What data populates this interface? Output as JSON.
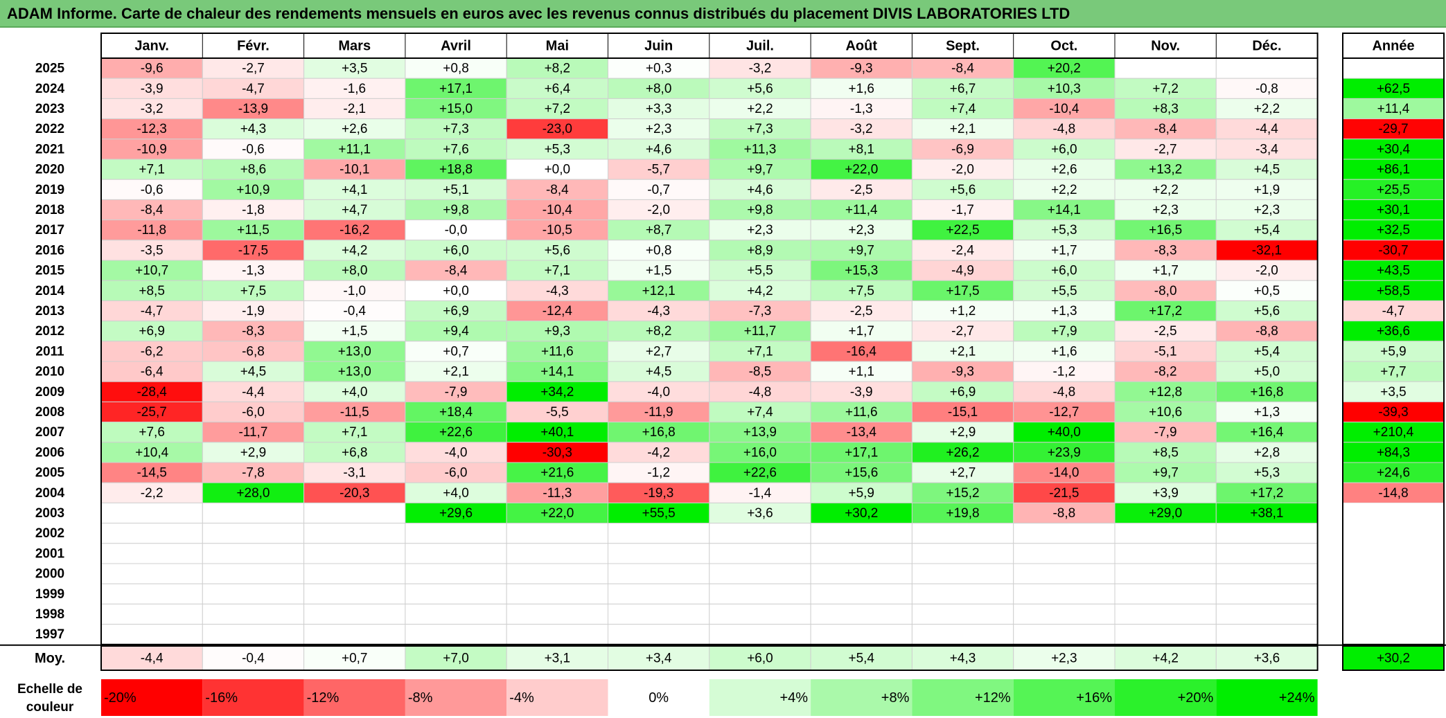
{
  "title": "ADAM Informe. Carte de chaleur des rendements mensuels en euros avec les revenus connus distribués du placement DIVIS LABORATORIES LTD",
  "chart_data": {
    "type": "heatmap",
    "title": "ADAM Informe. Carte de chaleur des rendements mensuels en euros avec les revenus connus distribués du placement DIVIS LABORATORIES LTD",
    "months": [
      "Janv.",
      "Févr.",
      "Mars",
      "Avril",
      "Mai",
      "Juin",
      "Juil.",
      "Août",
      "Sept.",
      "Oct.",
      "Nov.",
      "Déc."
    ],
    "year_header": "Année",
    "rows": [
      {
        "year": "2025",
        "values": [
          "-9,6",
          "-2,7",
          "+3,5",
          "+0,8",
          "+8,2",
          "+0,3",
          "-3,2",
          "-9,3",
          "-8,4",
          "+20,2",
          "",
          ""
        ],
        "annual": ""
      },
      {
        "year": "2024",
        "values": [
          "-3,9",
          "-4,7",
          "-1,6",
          "+17,1",
          "+6,4",
          "+8,0",
          "+5,6",
          "+1,6",
          "+6,7",
          "+10,3",
          "+7,2",
          "-0,8"
        ],
        "annual": "+62,5"
      },
      {
        "year": "2023",
        "values": [
          "-3,2",
          "-13,9",
          "-2,1",
          "+15,0",
          "+7,2",
          "+3,3",
          "+2,2",
          "-1,3",
          "+7,4",
          "-10,4",
          "+8,3",
          "+2,2"
        ],
        "annual": "+11,4"
      },
      {
        "year": "2022",
        "values": [
          "-12,3",
          "+4,3",
          "+2,6",
          "+7,3",
          "-23,0",
          "+2,3",
          "+7,3",
          "-3,2",
          "+2,1",
          "-4,8",
          "-8,4",
          "-4,4"
        ],
        "annual": "-29,7"
      },
      {
        "year": "2021",
        "values": [
          "-10,9",
          "-0,6",
          "+11,1",
          "+7,6",
          "+5,3",
          "+4,6",
          "+11,3",
          "+8,1",
          "-6,9",
          "+6,0",
          "-2,7",
          "-3,4"
        ],
        "annual": "+30,4"
      },
      {
        "year": "2020",
        "values": [
          "+7,1",
          "+8,6",
          "-10,1",
          "+18,8",
          "+0,0",
          "-5,7",
          "+9,7",
          "+22,0",
          "-2,0",
          "+2,6",
          "+13,2",
          "+4,5"
        ],
        "annual": "+86,1"
      },
      {
        "year": "2019",
        "values": [
          "-0,6",
          "+10,9",
          "+4,1",
          "+5,1",
          "-8,4",
          "-0,7",
          "+4,6",
          "-2,5",
          "+5,6",
          "+2,2",
          "+2,2",
          "+1,9"
        ],
        "annual": "+25,5"
      },
      {
        "year": "2018",
        "values": [
          "-8,4",
          "-1,8",
          "+4,7",
          "+9,8",
          "-10,4",
          "-2,0",
          "+9,8",
          "+11,4",
          "-1,7",
          "+14,1",
          "+2,3",
          "+2,3"
        ],
        "annual": "+30,1"
      },
      {
        "year": "2017",
        "values": [
          "-11,8",
          "+11,5",
          "-16,2",
          "-0,0",
          "-10,5",
          "+8,7",
          "+2,3",
          "+2,3",
          "+22,5",
          "+5,3",
          "+16,5",
          "+5,4"
        ],
        "annual": "+32,5"
      },
      {
        "year": "2016",
        "values": [
          "-3,5",
          "-17,5",
          "+4,2",
          "+6,0",
          "+5,6",
          "+0,8",
          "+8,9",
          "+9,7",
          "-2,4",
          "+1,7",
          "-8,3",
          "-32,1"
        ],
        "annual": "-30,7"
      },
      {
        "year": "2015",
        "values": [
          "+10,7",
          "-1,3",
          "+8,0",
          "-8,4",
          "+7,1",
          "+1,5",
          "+5,5",
          "+15,3",
          "-4,9",
          "+6,0",
          "+1,7",
          "-2,0"
        ],
        "annual": "+43,5"
      },
      {
        "year": "2014",
        "values": [
          "+8,5",
          "+7,5",
          "-1,0",
          "+0,0",
          "-4,3",
          "+12,1",
          "+4,2",
          "+7,5",
          "+17,5",
          "+5,5",
          "-8,0",
          "+0,5"
        ],
        "annual": "+58,5"
      },
      {
        "year": "2013",
        "values": [
          "-4,7",
          "-1,9",
          "-0,4",
          "+6,9",
          "-12,4",
          "-4,3",
          "-7,3",
          "-2,5",
          "+1,2",
          "+1,3",
          "+17,2",
          "+5,6"
        ],
        "annual": "-4,7"
      },
      {
        "year": "2012",
        "values": [
          "+6,9",
          "-8,3",
          "+1,5",
          "+9,4",
          "+9,3",
          "+8,2",
          "+11,7",
          "+1,7",
          "-2,7",
          "+7,9",
          "-2,5",
          "-8,8"
        ],
        "annual": "+36,6"
      },
      {
        "year": "2011",
        "values": [
          "-6,2",
          "-6,8",
          "+13,0",
          "+0,7",
          "+11,6",
          "+2,7",
          "+7,1",
          "-16,4",
          "+2,1",
          "+1,6",
          "-5,1",
          "+5,4"
        ],
        "annual": "+5,9"
      },
      {
        "year": "2010",
        "values": [
          "-6,4",
          "+4,5",
          "+13,0",
          "+2,1",
          "+14,1",
          "+4,5",
          "-8,5",
          "+1,1",
          "-9,3",
          "-1,2",
          "-8,2",
          "+5,0"
        ],
        "annual": "+7,7"
      },
      {
        "year": "2009",
        "values": [
          "-28,4",
          "-4,4",
          "+4,0",
          "-7,9",
          "+34,2",
          "-4,0",
          "-4,8",
          "-3,9",
          "+6,9",
          "-4,8",
          "+12,8",
          "+16,8"
        ],
        "annual": "+3,5"
      },
      {
        "year": "2008",
        "values": [
          "-25,7",
          "-6,0",
          "-11,5",
          "+18,4",
          "-5,5",
          "-11,9",
          "+7,4",
          "+11,6",
          "-15,1",
          "-12,7",
          "+10,6",
          "+1,3"
        ],
        "annual": "-39,3"
      },
      {
        "year": "2007",
        "values": [
          "+7,6",
          "-11,7",
          "+7,1",
          "+22,6",
          "+40,1",
          "+16,8",
          "+13,9",
          "-13,4",
          "+2,9",
          "+40,0",
          "-7,9",
          "+16,4"
        ],
        "annual": "+210,4"
      },
      {
        "year": "2006",
        "values": [
          "+10,4",
          "+2,9",
          "+6,8",
          "-4,0",
          "-30,3",
          "-4,2",
          "+16,0",
          "+17,1",
          "+26,2",
          "+23,9",
          "+8,5",
          "+2,8"
        ],
        "annual": "+84,3"
      },
      {
        "year": "2005",
        "values": [
          "-14,5",
          "-7,8",
          "-3,1",
          "-6,0",
          "+21,6",
          "-1,2",
          "+22,6",
          "+15,6",
          "+2,7",
          "-14,0",
          "+9,7",
          "+5,3"
        ],
        "annual": "+24,6"
      },
      {
        "year": "2004",
        "values": [
          "-2,2",
          "+28,0",
          "-20,3",
          "+4,0",
          "-11,3",
          "-19,3",
          "-1,4",
          "+5,9",
          "+15,2",
          "-21,5",
          "+3,9",
          "+17,2"
        ],
        "annual": "-14,8"
      },
      {
        "year": "2003",
        "values": [
          "",
          "",
          "",
          "+29,6",
          "+22,0",
          "+55,5",
          "+3,6",
          "+30,2",
          "+19,8",
          "-8,8",
          "+29,0",
          "+38,1"
        ],
        "annual": ""
      },
      {
        "year": "2002",
        "values": [
          "",
          "",
          "",
          "",
          "",
          "",
          "",
          "",
          "",
          "",
          "",
          ""
        ],
        "annual": ""
      },
      {
        "year": "2001",
        "values": [
          "",
          "",
          "",
          "",
          "",
          "",
          "",
          "",
          "",
          "",
          "",
          ""
        ],
        "annual": ""
      },
      {
        "year": "2000",
        "values": [
          "",
          "",
          "",
          "",
          "",
          "",
          "",
          "",
          "",
          "",
          "",
          ""
        ],
        "annual": ""
      },
      {
        "year": "1999",
        "values": [
          "",
          "",
          "",
          "",
          "",
          "",
          "",
          "",
          "",
          "",
          "",
          ""
        ],
        "annual": ""
      },
      {
        "year": "1998",
        "values": [
          "",
          "",
          "",
          "",
          "",
          "",
          "",
          "",
          "",
          "",
          "",
          ""
        ],
        "annual": ""
      },
      {
        "year": "1997",
        "values": [
          "",
          "",
          "",
          "",
          "",
          "",
          "",
          "",
          "",
          "",
          "",
          ""
        ],
        "annual": ""
      }
    ],
    "average": {
      "label": "Moy.",
      "values": [
        "-4,4",
        "-0,4",
        "+0,7",
        "+7,0",
        "+3,1",
        "+3,4",
        "+6,0",
        "+5,4",
        "+4,3",
        "+2,3",
        "+4,2",
        "+3,6"
      ],
      "annual": "+30,2"
    },
    "scale": {
      "label": "Echelle de couleur",
      "stops": [
        "-20%",
        "-16%",
        "-12%",
        "-8%",
        "-4%",
        "0%",
        "+4%",
        "+8%",
        "+12%",
        "+16%",
        "+20%",
        "+24%"
      ],
      "stop_values": [
        -20,
        -16,
        -12,
        -8,
        -4,
        0,
        4,
        8,
        12,
        16,
        20,
        24
      ]
    },
    "colors": {
      "negative_max": "#ff0000",
      "neutral": "#ffffff",
      "positive_max": "#00ee00",
      "title_band": "#79c97a"
    }
  }
}
